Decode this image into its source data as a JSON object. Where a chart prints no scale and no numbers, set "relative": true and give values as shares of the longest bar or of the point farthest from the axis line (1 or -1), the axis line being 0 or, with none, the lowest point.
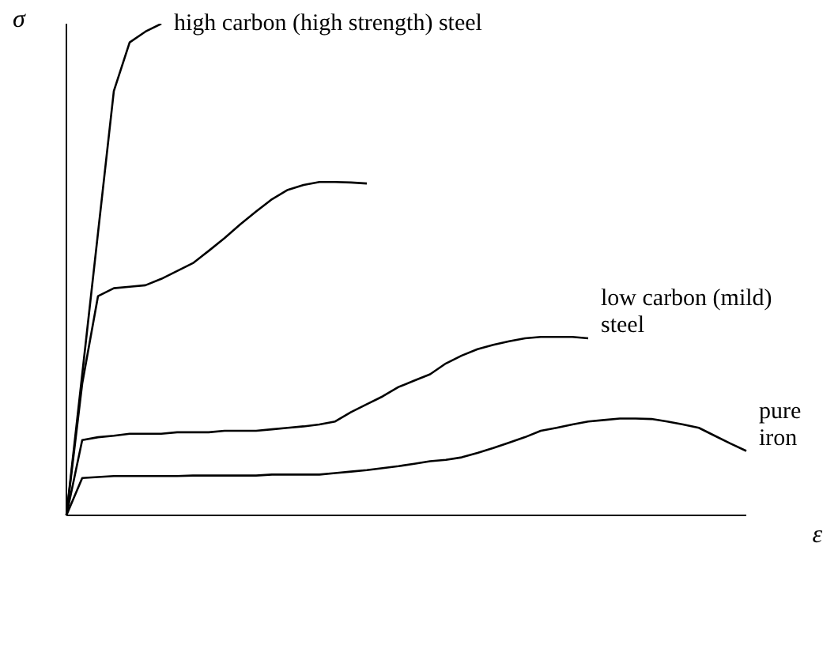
{
  "chart_data": {
    "type": "line",
    "xlabel": "ε",
    "ylabel": "σ",
    "relative": true,
    "marker": "none",
    "line_style": "solid",
    "categories": [
      null,
      null,
      null,
      null,
      null,
      null,
      null,
      null,
      null,
      null,
      null,
      null,
      null,
      null,
      null,
      null,
      null,
      null,
      null,
      null,
      null,
      null,
      null,
      null,
      null,
      null,
      null,
      null,
      null,
      null,
      null,
      null,
      null,
      null,
      null,
      null,
      null,
      null,
      null,
      null,
      null,
      null,
      null,
      null
    ],
    "series": [
      {
        "name": "high carbon (high strength) steel",
        "color": "#000000",
        "values": [
          0,
          0.287,
          0.575,
          0.863,
          0.962,
          0.984,
          1,
          null,
          null,
          null,
          null,
          null,
          null,
          null,
          null,
          null,
          null,
          null,
          null,
          null,
          null,
          null,
          null,
          null,
          null,
          null,
          null,
          null,
          null,
          null,
          null,
          null,
          null,
          null,
          null,
          null,
          null,
          null,
          null,
          null,
          null,
          null,
          null,
          null
        ]
      },
      {
        "color": "#000000",
        "values": [
          0,
          0.268,
          0.446,
          0.462,
          0.465,
          0.468,
          0.481,
          0.497,
          0.513,
          0.538,
          0.564,
          0.592,
          0.618,
          0.643,
          0.662,
          0.672,
          0.678,
          0.678,
          0.677,
          0.675,
          null,
          null,
          null,
          null,
          null,
          null,
          null,
          null,
          null,
          null,
          null,
          null,
          null,
          null,
          null,
          null,
          null,
          null,
          null,
          null,
          null,
          null,
          null,
          null
        ]
      },
      {
        "name": "low carbon (mild) steel",
        "color": "#000000",
        "values": [
          0,
          0.153,
          0.159,
          0.162,
          0.166,
          0.166,
          0.166,
          0.169,
          0.169,
          0.169,
          0.172,
          0.172,
          0.172,
          0.175,
          0.178,
          0.181,
          0.185,
          0.191,
          0.21,
          0.226,
          0.242,
          0.261,
          0.274,
          0.287,
          0.309,
          0.325,
          0.338,
          0.347,
          0.354,
          0.36,
          0.363,
          0.363,
          0.363,
          0.36,
          null,
          null,
          null,
          null,
          null,
          null,
          null,
          null,
          null,
          null
        ]
      },
      {
        "name": "pure iron",
        "color": "#000000",
        "values": [
          0,
          0.076,
          0.078,
          0.08,
          0.08,
          0.08,
          0.08,
          0.08,
          0.081,
          0.081,
          0.081,
          0.081,
          0.081,
          0.083,
          0.083,
          0.083,
          0.083,
          0.086,
          0.089,
          0.092,
          0.096,
          0.1,
          0.105,
          0.11,
          0.113,
          0.118,
          0.127,
          0.137,
          0.148,
          0.159,
          0.172,
          0.178,
          0.185,
          0.191,
          0.194,
          0.197,
          0.197,
          0.196,
          0.191,
          0.185,
          0.178,
          0.162,
          0.146,
          0.131
        ]
      }
    ]
  }
}
